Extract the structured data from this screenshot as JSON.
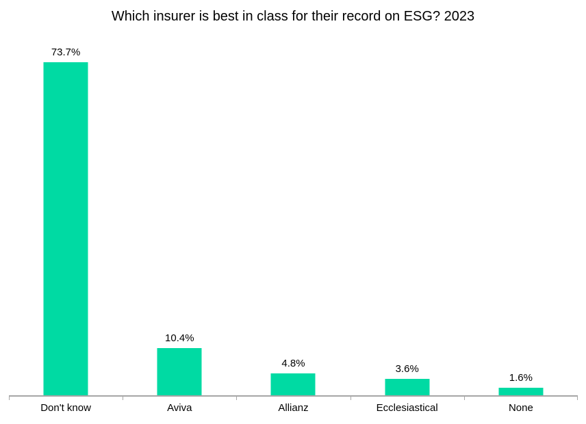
{
  "title": "Which insurer is best in class for their record on ESG? 2023",
  "colors": {
    "bar": "#00DAA3",
    "axis": "#A6A6A6",
    "text": "#000000",
    "background": "#FFFFFF"
  },
  "chart_data": {
    "type": "bar",
    "title": "Which insurer is best in class for their record on ESG? 2023",
    "categories": [
      "Don't know",
      "Aviva",
      "Allianz",
      "Ecclesiastical",
      "None"
    ],
    "values": [
      73.7,
      10.4,
      4.8,
      3.6,
      1.6
    ],
    "data_labels": [
      "73.7%",
      "10.4%",
      "4.8%",
      "3.6%",
      "1.6%"
    ],
    "xlabel": "",
    "ylabel": "",
    "ylim": [
      0,
      80
    ],
    "grid": false,
    "legend": false,
    "data_label_position": "above-bar",
    "axis_ticks": "category-boundaries"
  }
}
